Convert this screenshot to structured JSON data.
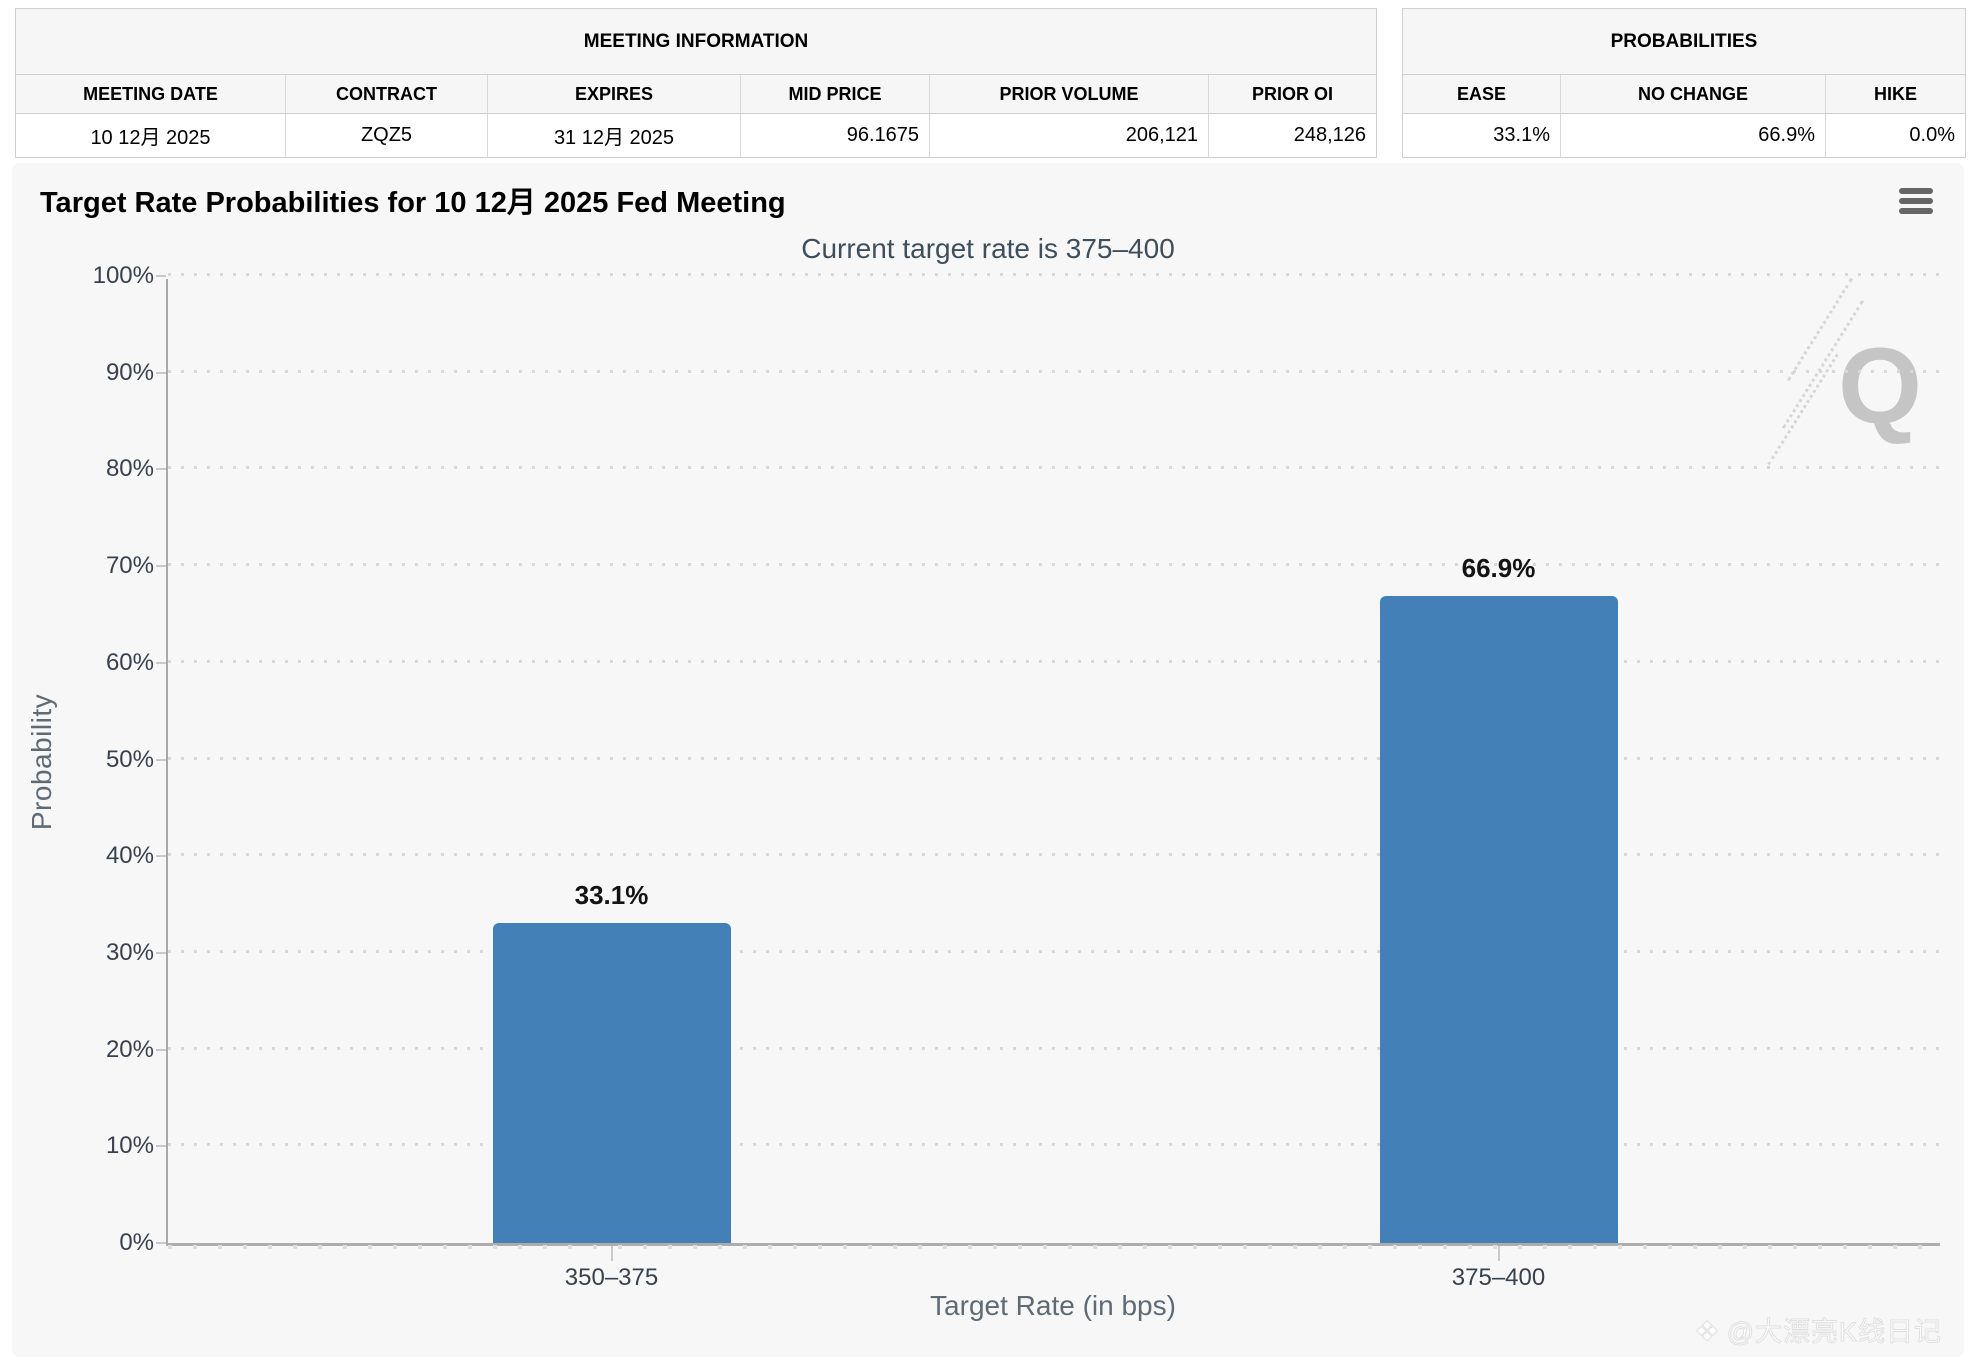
{
  "meeting_info": {
    "title": "MEETING INFORMATION",
    "columns": [
      "MEETING DATE",
      "CONTRACT",
      "EXPIRES",
      "MID PRICE",
      "PRIOR VOLUME",
      "PRIOR OI"
    ],
    "values": [
      "10 12月 2025",
      "ZQZ5",
      "31 12月 2025",
      "96.1675",
      "206,121",
      "248,126"
    ]
  },
  "probabilities": {
    "title": "PROBABILITIES",
    "columns": [
      "EASE",
      "NO CHANGE",
      "HIKE"
    ],
    "values": [
      "33.1%",
      "66.9%",
      "0.0%"
    ]
  },
  "chart": {
    "title": "Target Rate Probabilities for 10 12月 2025 Fed Meeting",
    "subtitle": "Current target rate is 375–400",
    "watermark_letter": "Q",
    "credit_icon": "❖",
    "credit_text": "@大漂亮K线日记"
  },
  "chart_data": {
    "type": "bar",
    "categories": [
      "350–375",
      "375–400"
    ],
    "values": [
      33.1,
      66.9
    ],
    "value_labels": [
      "33.1%",
      "66.9%"
    ],
    "title": "Target Rate Probabilities for 10 12月 2025 Fed Meeting",
    "subtitle": "Current target rate is 375–400",
    "xlabel": "Target Rate (in bps)",
    "ylabel": "Probability",
    "ylim": [
      0,
      100
    ],
    "ytick_step": 10,
    "ytick_suffix": "%",
    "grid": "dotted-horizontal",
    "legend": "none",
    "bar_color": "#4380B8"
  }
}
